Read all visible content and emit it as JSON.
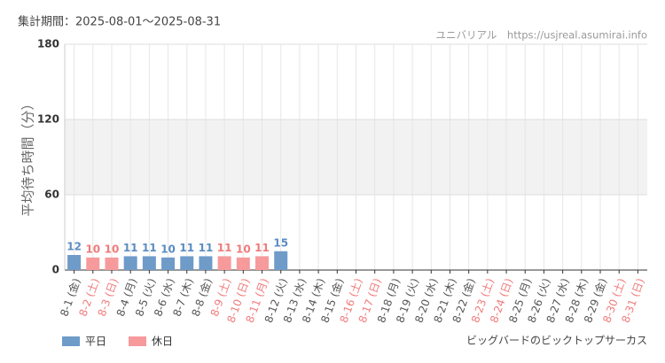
{
  "chart_data": {
    "type": "bar",
    "title": "集計期間：2025-08-01～2025-08-31",
    "source": "ユニバリアル　https://usjreal.asumirai.info",
    "subtitle": "ビッグバードのビックトップサーカス",
    "y_label": "平均待ち時間（分）",
    "categories": [
      "8-1 (金)",
      "8-2 (土)",
      "8-3 (日)",
      "8-4 (月)",
      "8-5 (火)",
      "8-6 (水)",
      "8-7 (木)",
      "8-8 (金)",
      "8-9 (土)",
      "8-10 (日)",
      "8-11 (月)",
      "8-12 (火)",
      "8-13 (水)",
      "8-14 (木)",
      "8-15 (金)",
      "8-16 (土)",
      "8-17 (日)",
      "8-18 (月)",
      "8-19 (火)",
      "8-20 (水)",
      "8-21 (木)",
      "8-22 (金)",
      "8-23 (土)",
      "8-24 (日)",
      "8-25 (月)",
      "8-26 (火)",
      "8-27 (水)",
      "8-28 (木)",
      "8-29 (金)",
      "8-30 (土)",
      "8-31 (日)"
    ],
    "category_colors": [
      "#555555",
      "#f07b7b",
      "#f07b7b",
      "#555555",
      "#555555",
      "#555555",
      "#555555",
      "#555555",
      "#f07b7b",
      "#f07b7b",
      "#f07b7b",
      "#555555",
      "#555555",
      "#555555",
      "#555555",
      "#f07b7b",
      "#f07b7b",
      "#555555",
      "#555555",
      "#555555",
      "#555555",
      "#555555",
      "#f07b7b",
      "#f07b7b",
      "#555555",
      "#555555",
      "#555555",
      "#555555",
      "#555555",
      "#f07b7b",
      "#f07b7b"
    ],
    "series": [
      {
        "name": "平日",
        "color": "#6f9bc9",
        "label_color": "#5b8cc2",
        "values": [
          12,
          null,
          null,
          11,
          11,
          10,
          11,
          11,
          null,
          null,
          null,
          15,
          null,
          null,
          null,
          null,
          null,
          null,
          null,
          null,
          null,
          null,
          null,
          null,
          null,
          null,
          null,
          null,
          null,
          null,
          null
        ]
      },
      {
        "name": "休日",
        "color": "#f69a9c",
        "label_color": "#f07b7b",
        "values": [
          null,
          10,
          10,
          null,
          null,
          null,
          null,
          null,
          11,
          10,
          11,
          null,
          null,
          null,
          null,
          null,
          null,
          null,
          null,
          null,
          null,
          null,
          null,
          null,
          null,
          null,
          null,
          null,
          null,
          null,
          null
        ]
      }
    ],
    "ylim": [
      0,
      180
    ],
    "yticks": [
      0,
      60,
      120,
      180
    ],
    "grid": true
  }
}
